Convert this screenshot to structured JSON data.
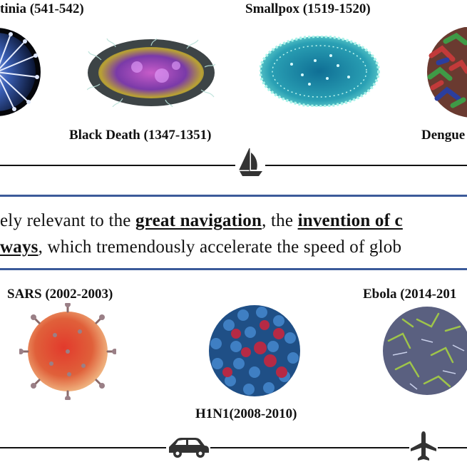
{
  "top_timeline": {
    "labels": [
      {
        "id": "justinia",
        "text": "tinia (541-542)"
      },
      {
        "id": "smallpox",
        "text": "Smallpox (1519-1520)"
      },
      {
        "id": "black_death",
        "text": "Black Death (1347-1351)"
      },
      {
        "id": "dengue",
        "text": "Dengue"
      }
    ],
    "icon": "sailboat-icon"
  },
  "band": {
    "line1": {
      "pre": "ely relevant to the ",
      "b1": "great navigation",
      "mid": ", the ",
      "b2": "invention of c"
    },
    "line2": {
      "b1": "ways",
      "post": ", which tremendously accelerate the speed of glob"
    }
  },
  "bottom_timeline": {
    "labels": [
      {
        "id": "sars",
        "text": "SARS (2002-2003)"
      },
      {
        "id": "ebola",
        "text": "Ebola (2014-201"
      },
      {
        "id": "h1n1",
        "text": "H1N1(2008-2010)"
      }
    ],
    "icons": [
      "car-icon",
      "airplane-icon"
    ]
  },
  "colors": {
    "band_rule": "#3b5a9a",
    "timeline": "#111111"
  }
}
